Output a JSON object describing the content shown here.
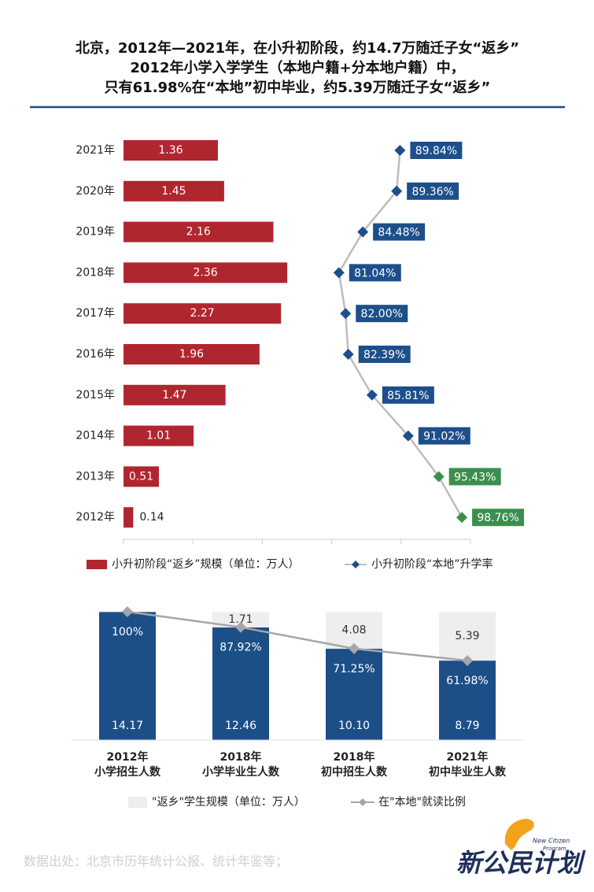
{
  "title": [
    "北京，2012年—2021年，在小升初阶段，约14.7万随迁子女“返乡”",
    "2012年小学入学学生（本地户籍+分本地户籍）中，",
    "只有61.98%在“本地”初中毕业，约5.39万随迁子女“返乡”"
  ],
  "chart_data": [
    {
      "type": "bar-line",
      "categories": [
        "2021年",
        "2020年",
        "2019年",
        "2018年",
        "2017年",
        "2016年",
        "2015年",
        "2014年",
        "2013年",
        "2012年"
      ],
      "xlim": [
        0,
        5
      ],
      "xticks": [
        0,
        1,
        2,
        3,
        4,
        5
      ],
      "x2lim": [
        50,
        100
      ],
      "legend": "bottom",
      "series": [
        {
          "name": "小升初阶段“返乡”规模（单位：万人）",
          "color": "#b0262f",
          "values": [
            1.36,
            1.45,
            2.16,
            2.36,
            2.27,
            1.96,
            1.47,
            1.01,
            0.51,
            0.14
          ]
        },
        {
          "name": "小升初阶段“本地”升学率",
          "color": "#1d4f8a",
          "axis": "x2",
          "line_color": "#bdbdbd",
          "values": [
            89.84,
            89.36,
            84.48,
            81.04,
            82.0,
            82.39,
            85.81,
            91.02,
            95.43,
            98.76
          ],
          "value_labels": [
            "89.84%",
            "89.36%",
            "84.48%",
            "81.04%",
            "82.00%",
            "82.39%",
            "85.81%",
            "91.02%",
            "95.43%",
            "98.76%"
          ],
          "colors": [
            "#1d4f8a",
            "#1d4f8a",
            "#1d4f8a",
            "#1d4f8a",
            "#1d4f8a",
            "#1d4f8a",
            "#1d4f8a",
            "#1d4f8a",
            "#3b8f4e",
            "#3b8f4e"
          ]
        }
      ]
    },
    {
      "type": "stacked-bar-line",
      "categories": [
        [
          "2012年",
          "小学招生人数"
        ],
        [
          "2018年",
          "小学毕业生人数"
        ],
        [
          "2018年",
          "初中招生人数"
        ],
        [
          "2021年",
          "初中毕业生人数"
        ]
      ],
      "ylim": [
        0,
        14.2
      ],
      "y2lim": [
        0,
        100
      ],
      "legend": "bottom",
      "series": [
        {
          "color": "#1c4f88",
          "values": [
            14.17,
            12.46,
            10.1,
            8.79
          ],
          "value_labels": [
            "14.17",
            "12.46",
            "10.10",
            "8.79"
          ]
        },
        {
          "name": "\"返乡\"学生规模（单位：万人）",
          "color": "#eeeeee",
          "values": [
            null,
            1.71,
            4.08,
            5.39
          ]
        },
        {
          "name": "在\"本地\"就读比例",
          "color": "#a6a6a6",
          "axis": "y2",
          "values": [
            100,
            87.92,
            71.25,
            61.98
          ],
          "value_labels": [
            "100%",
            "87.92%",
            "71.25%",
            "61.98%"
          ]
        }
      ]
    }
  ],
  "source": "数据出处：北京市历年统计公报、统计年鉴等；",
  "logo": {
    "en": [
      "New Citizen",
      "Program"
    ],
    "zh": "新公民计划"
  }
}
